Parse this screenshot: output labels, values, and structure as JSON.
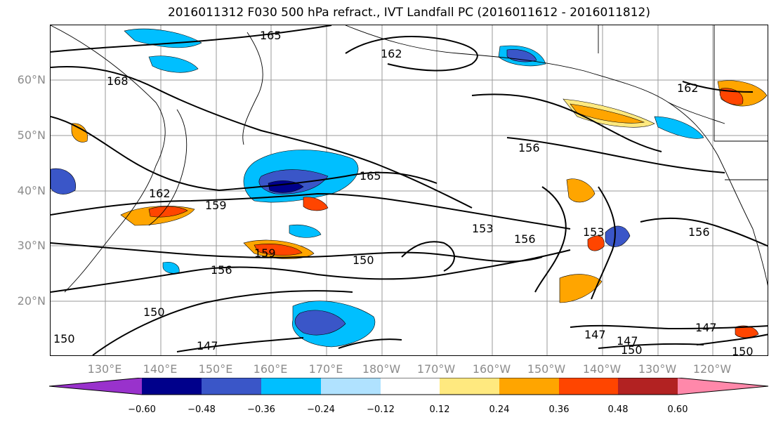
{
  "title": "2016011312 F030 500 hPa refract., IVT Landfall PC (2016011612 - 2016011812)",
  "map": {
    "lat_labels": [
      "60°N",
      "50°N",
      "40°N",
      "30°N",
      "20°N"
    ],
    "lon_labels": [
      "130°E",
      "140°E",
      "150°E",
      "160°E",
      "170°E",
      "180°W",
      "170°W",
      "160°W",
      "150°W",
      "140°W",
      "130°W",
      "120°W"
    ],
    "contour_labels": [
      "165",
      "162",
      "168",
      "162",
      "159",
      "165",
      "156",
      "159",
      "156",
      "150",
      "150",
      "153",
      "156",
      "153",
      "156",
      "147",
      "147",
      "147",
      "150",
      "147",
      "150",
      "150",
      "162"
    ]
  },
  "colorbar": {
    "colors": [
      "#9932cc",
      "#00008b",
      "#3a56c8",
      "#00bfff",
      "#b0e2ff",
      "#ffffff",
      "#ffe97f",
      "#ffa500",
      "#ff4500",
      "#b22222",
      "#ff88aa"
    ],
    "tick_labels": [
      "−0.60",
      "−0.48",
      "−0.36",
      "−0.24",
      "−0.12",
      "0.12",
      "0.24",
      "0.36",
      "0.48",
      "0.60"
    ]
  }
}
